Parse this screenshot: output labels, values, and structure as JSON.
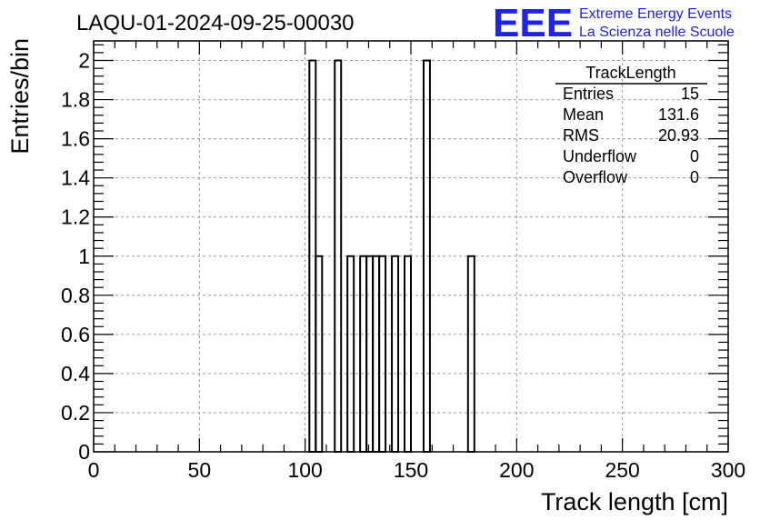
{
  "title": "LAQU-01-2024-09-25-00030",
  "logo": {
    "mark": "EEE",
    "line1": "Extreme Energy Events",
    "line2": "La Scienza nelle Scuole",
    "color": "#1f24e6"
  },
  "stats": {
    "name": "TrackLength",
    "rows": [
      {
        "label": "Entries",
        "value": "15"
      },
      {
        "label": "Mean",
        "value": "131.6"
      },
      {
        "label": "RMS",
        "value": "20.93"
      },
      {
        "label": "Underflow",
        "value": "0"
      },
      {
        "label": "Overflow",
        "value": "0"
      }
    ]
  },
  "chart_data": {
    "type": "bar",
    "histogram": true,
    "bin_width": 3,
    "xlabel": "Track length [cm]",
    "ylabel": "Entries/bin",
    "xlim": [
      0,
      300
    ],
    "ylim": [
      0,
      2.1
    ],
    "x_ticks": [
      0,
      50,
      100,
      150,
      200,
      250,
      300
    ],
    "y_ticks": [
      0,
      0.2,
      0.4,
      0.6,
      0.8,
      1,
      1.2,
      1.4,
      1.6,
      1.8,
      2
    ],
    "y_tick_labels": [
      "0",
      "0.2",
      "0.4",
      "0.6",
      "0.8",
      "1",
      "1.2",
      "1.4",
      "1.6",
      "1.8",
      "2"
    ],
    "grid": true,
    "bins": [
      {
        "x0": 102,
        "x1": 105,
        "count": 2
      },
      {
        "x0": 105,
        "x1": 108,
        "count": 1
      },
      {
        "x0": 114,
        "x1": 117,
        "count": 2
      },
      {
        "x0": 120,
        "x1": 123,
        "count": 1
      },
      {
        "x0": 126,
        "x1": 129,
        "count": 1
      },
      {
        "x0": 129,
        "x1": 132,
        "count": 1
      },
      {
        "x0": 132,
        "x1": 135,
        "count": 1
      },
      {
        "x0": 135,
        "x1": 138,
        "count": 1
      },
      {
        "x0": 141,
        "x1": 144,
        "count": 1
      },
      {
        "x0": 147,
        "x1": 150,
        "count": 1
      },
      {
        "x0": 156,
        "x1": 159,
        "count": 2
      },
      {
        "x0": 177,
        "x1": 180,
        "count": 1
      }
    ]
  }
}
